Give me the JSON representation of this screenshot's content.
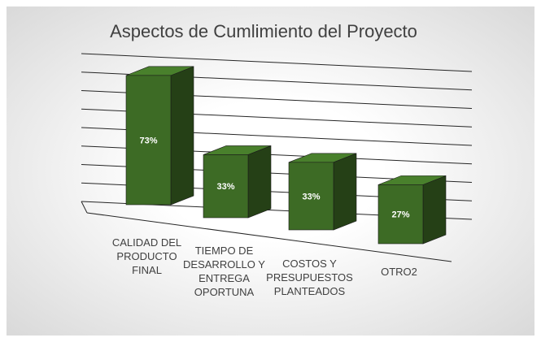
{
  "chart_data": {
    "type": "bar3d",
    "title": "Aspectos de Cumlimiento del Proyecto",
    "categories": [
      "CALIDAD DEL PRODUCTO FINAL",
      "TIEMPO DE DESARROLLO Y ENTREGA OPORTUNA",
      "COSTOS Y PRESUPUESTOS PLANTEADOS",
      "OTRO2"
    ],
    "values": [
      73,
      33,
      33,
      27
    ],
    "value_labels": [
      "73%",
      "33%",
      "33%",
      "27%"
    ],
    "color": "#3d6b25",
    "ylim": [
      0,
      80
    ],
    "yticks": [
      0,
      10,
      20,
      30,
      40,
      50,
      60,
      70,
      80
    ],
    "grid": true
  }
}
